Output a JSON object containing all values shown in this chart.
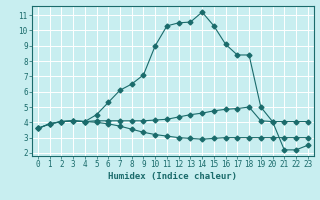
{
  "xlabel": "Humidex (Indice chaleur)",
  "bg_color": "#c8eef0",
  "grid_color": "#ffffff",
  "line_color": "#1a6b6b",
  "xlim": [
    -0.5,
    23.5
  ],
  "ylim": [
    1.8,
    11.6
  ],
  "xticks": [
    0,
    1,
    2,
    3,
    4,
    5,
    6,
    7,
    8,
    9,
    10,
    11,
    12,
    13,
    14,
    15,
    16,
    17,
    18,
    19,
    20,
    21,
    22,
    23
  ],
  "yticks": [
    2,
    3,
    4,
    5,
    6,
    7,
    8,
    9,
    10,
    11
  ],
  "series1_x": [
    0,
    1,
    2,
    3,
    4,
    5,
    6,
    7,
    8,
    9,
    10,
    11,
    12,
    13,
    14,
    15,
    16,
    17,
    18,
    19,
    20,
    21,
    22,
    23
  ],
  "series1_y": [
    3.6,
    3.9,
    4.05,
    4.1,
    4.05,
    4.1,
    4.1,
    4.1,
    4.1,
    4.1,
    4.15,
    4.2,
    4.35,
    4.5,
    4.6,
    4.75,
    4.85,
    4.9,
    5.0,
    4.1,
    4.05,
    4.05,
    4.05,
    4.05
  ],
  "series2_x": [
    0,
    1,
    2,
    3,
    4,
    5,
    6,
    7,
    8,
    9,
    10,
    11,
    12,
    13,
    14,
    15,
    16,
    17,
    18,
    19,
    20,
    21,
    22,
    23
  ],
  "series2_y": [
    3.6,
    3.9,
    4.05,
    4.1,
    4.05,
    4.0,
    3.9,
    3.75,
    3.55,
    3.35,
    3.2,
    3.1,
    3.0,
    2.95,
    2.9,
    2.95,
    3.0,
    3.0,
    3.0,
    3.0,
    3.0,
    3.0,
    3.0,
    3.0
  ],
  "series3_x": [
    0,
    1,
    2,
    3,
    4,
    5,
    6,
    7,
    8,
    9,
    10,
    11,
    12,
    13,
    14,
    15,
    16,
    17,
    18,
    19,
    20,
    21,
    22,
    23
  ],
  "series3_y": [
    3.6,
    3.9,
    4.05,
    4.1,
    4.05,
    4.5,
    5.3,
    6.1,
    6.5,
    7.1,
    9.0,
    10.3,
    10.5,
    10.55,
    11.2,
    10.3,
    9.1,
    8.4,
    8.4,
    5.0,
    4.05,
    2.2,
    2.2,
    2.5
  ],
  "marker_size": 2.5,
  "tick_fontsize": 5.5,
  "xlabel_fontsize": 6.5
}
